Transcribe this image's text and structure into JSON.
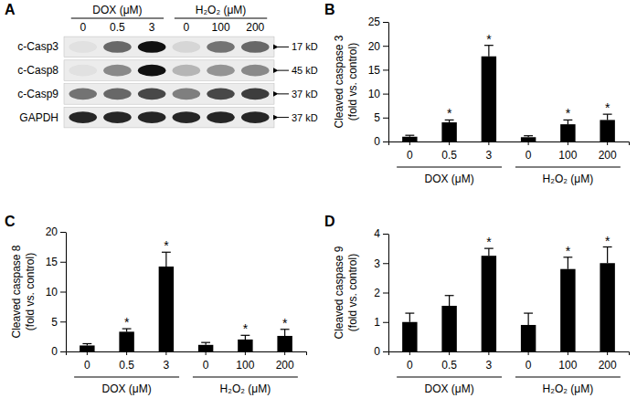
{
  "blot": {
    "label": "A",
    "group_labels": [
      "DOX (μM)",
      "DOX (μM)",
      "DOX (μM)",
      "H₂O₂ (μM)",
      "H₂O₂ (μM)",
      "H₂O₂ (μM)"
    ],
    "lanes": [
      "0",
      "0.5",
      "3",
      "0",
      "100",
      "200"
    ],
    "rows": [
      {
        "name": "c-Casp3",
        "size": "17 kD",
        "intensities": [
          0.05,
          0.6,
          1.0,
          0.1,
          0.55,
          0.6
        ]
      },
      {
        "name": "c-Casp8",
        "size": "45 kD",
        "intensities": [
          0.05,
          0.45,
          1.0,
          0.25,
          0.4,
          0.45
        ]
      },
      {
        "name": "c-Casp9",
        "size": "37 kD",
        "intensities": [
          0.55,
          0.6,
          0.75,
          0.5,
          0.75,
          0.8
        ]
      },
      {
        "name": "GAPDH",
        "size": "37 kD",
        "intensities": [
          0.9,
          0.9,
          0.9,
          0.9,
          0.9,
          0.9
        ]
      }
    ]
  },
  "chart_data": [
    {
      "type": "bar",
      "title": "B",
      "y_label": [
        "Cleaved caspase 3",
        "(fold vs. control)"
      ],
      "categories": [
        "0",
        "0.5",
        "3",
        "0",
        "100",
        "200"
      ],
      "group_labels": [
        "DOX (μM)",
        "DOX (μM)",
        "DOX (μM)",
        "H₂O₂ (μM)",
        "H₂O₂ (μM)",
        "H₂O₂ (μM)"
      ],
      "values": [
        1.0,
        4.0,
        17.8,
        0.9,
        3.6,
        4.5
      ],
      "errors": [
        0.3,
        0.5,
        2.3,
        0.3,
        0.9,
        1.2
      ],
      "significance": [
        null,
        "*",
        "*",
        null,
        "*",
        "*"
      ],
      "color": "#000000",
      "ylim": [
        0,
        25
      ],
      "yticks": [
        0,
        5,
        10,
        15,
        20,
        25
      ]
    },
    {
      "type": "bar",
      "title": "C",
      "y_label": [
        "Cleaved caspase 8",
        "(fold vs. control)"
      ],
      "categories": [
        "0",
        "0.5",
        "3",
        "0",
        "100",
        "200"
      ],
      "group_labels": [
        "DOX (μM)",
        "DOX (μM)",
        "DOX (μM)",
        "H₂O₂ (μM)",
        "H₂O₂ (μM)",
        "H₂O₂ (μM)"
      ],
      "values": [
        1.0,
        3.3,
        14.2,
        1.1,
        2.0,
        2.6
      ],
      "errors": [
        0.3,
        0.5,
        2.4,
        0.4,
        0.7,
        1.1
      ],
      "significance": [
        null,
        "*",
        "*",
        null,
        "*",
        "*"
      ],
      "color": "#000000",
      "ylim": [
        0,
        20
      ],
      "yticks": [
        0,
        5,
        10,
        15,
        20
      ]
    },
    {
      "type": "bar",
      "title": "D",
      "y_label": [
        "Cleaved caspase 9",
        "(fold vs. control)"
      ],
      "categories": [
        "0",
        "0.5",
        "3",
        "0",
        "100",
        "200"
      ],
      "group_labels": [
        "DOX (μM)",
        "DOX (μM)",
        "DOX (μM)",
        "H₂O₂ (μM)",
        "H₂O₂ (μM)",
        "H₂O₂ (μM)"
      ],
      "values": [
        1.0,
        1.55,
        3.25,
        0.9,
        2.8,
        3.0
      ],
      "errors": [
        0.3,
        0.35,
        0.25,
        0.4,
        0.4,
        0.55
      ],
      "significance": [
        null,
        null,
        "*",
        null,
        "*",
        "*"
      ],
      "color": "#000000",
      "ylim": [
        0,
        4
      ],
      "yticks": [
        0,
        1,
        2,
        3,
        4
      ]
    }
  ]
}
